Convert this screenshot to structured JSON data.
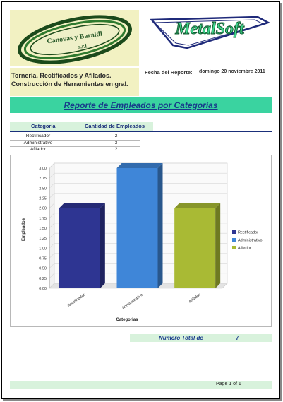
{
  "logos": {
    "left_text_line1": "Canovas y Baraldi",
    "left_text_line2": "s.r.l.",
    "right_text": "MetalSoft"
  },
  "company": {
    "line1": "Tornería, Rectificados y Afilados.",
    "line2": "Construcción de Herramientas en gral."
  },
  "report_date": {
    "label": "Fecha del Reporte:",
    "value": "domingo 20 noviembre 2011"
  },
  "report_title": "Reporte de Empleados por Categorías",
  "table": {
    "headers": [
      "Categoría",
      "Cantidad de Empleados"
    ],
    "rows": [
      {
        "categoria": "Rectificador",
        "cantidad": "2"
      },
      {
        "categoria": "Administrativo",
        "cantidad": "3"
      },
      {
        "categoria": "Afilador",
        "cantidad": "2"
      }
    ]
  },
  "chart_data": {
    "type": "bar",
    "categories": [
      "Rectificador",
      "Administrativo",
      "Afilador"
    ],
    "values": [
      2,
      3,
      2
    ],
    "colors": [
      "#2e3592",
      "#3f86d8",
      "#a9ba34"
    ],
    "xlabel": "Categorias",
    "ylabel": "Empleados",
    "ylim": [
      0,
      3
    ],
    "yticks": [
      "0.00",
      "0.25",
      "0.50",
      "0.75",
      "1.00",
      "1.25",
      "1.50",
      "1.75",
      "2.00",
      "2.25",
      "2.50",
      "2.75",
      "3.00"
    ],
    "legend": [
      "Rectificador",
      "Administrativo",
      "Afilador"
    ],
    "legend_position": "right",
    "grid": true
  },
  "total": {
    "label": "Número Total de",
    "value": "7"
  },
  "footer": {
    "page": "Page 1 of 1"
  }
}
